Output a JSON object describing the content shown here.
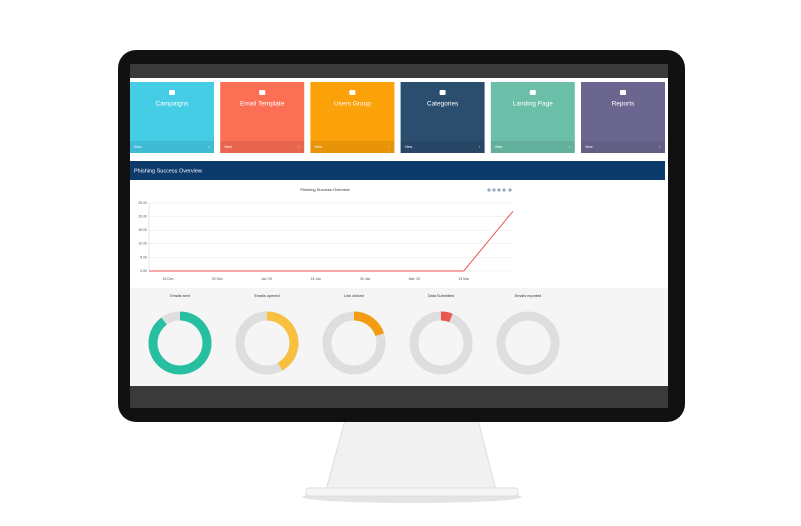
{
  "tiles": [
    {
      "label": "Campaigns",
      "footer": "View",
      "color": "#45cde5"
    },
    {
      "label": "Email Template",
      "footer": "View",
      "color": "#fb6f54"
    },
    {
      "label": "Users Group",
      "footer": "View",
      "color": "#fba10a"
    },
    {
      "label": "Categories",
      "footer": "View",
      "color": "#2b4d6e"
    },
    {
      "label": "Landing Page",
      "footer": "View",
      "color": "#6bbfa9"
    },
    {
      "label": "Reports",
      "footer": "View",
      "color": "#6b6690"
    }
  ],
  "section_title": "Phishing Success Overview",
  "chart_data": [
    {
      "type": "line",
      "title": "Phishing Success Overview",
      "categories": [
        "15 Dec",
        "30 Dec",
        "Jan '20",
        "15 Jan",
        "30 Jan",
        "Mar '20",
        "15 Mar",
        null
      ],
      "series": [
        {
          "color": "#e9574f",
          "values": [
            0,
            0,
            0,
            0,
            0,
            0,
            0,
            22
          ]
        }
      ],
      "ylim": [
        0,
        25
      ],
      "yticks": [
        {
          "value": 0,
          "label": "0.00"
        },
        {
          "value": 5,
          "label": "5.00"
        },
        {
          "value": 10,
          "label": "10.00"
        },
        {
          "value": 15,
          "label": "15.00"
        },
        {
          "value": 20,
          "label": "20.00"
        },
        {
          "value": 25,
          "label": "25.00"
        }
      ],
      "grid": true
    },
    {
      "type": "donut",
      "categories": [
        "Emails sent",
        "Emails opened",
        "Link clicked",
        "Data Submitted",
        "Emails reported"
      ],
      "values": [
        90,
        42,
        20,
        6,
        0
      ],
      "colors": [
        "#26bf9f",
        "#f7c13f",
        "#f39c12",
        "#e9574f",
        "#26bf9f"
      ],
      "track_color": "#dedede"
    }
  ]
}
